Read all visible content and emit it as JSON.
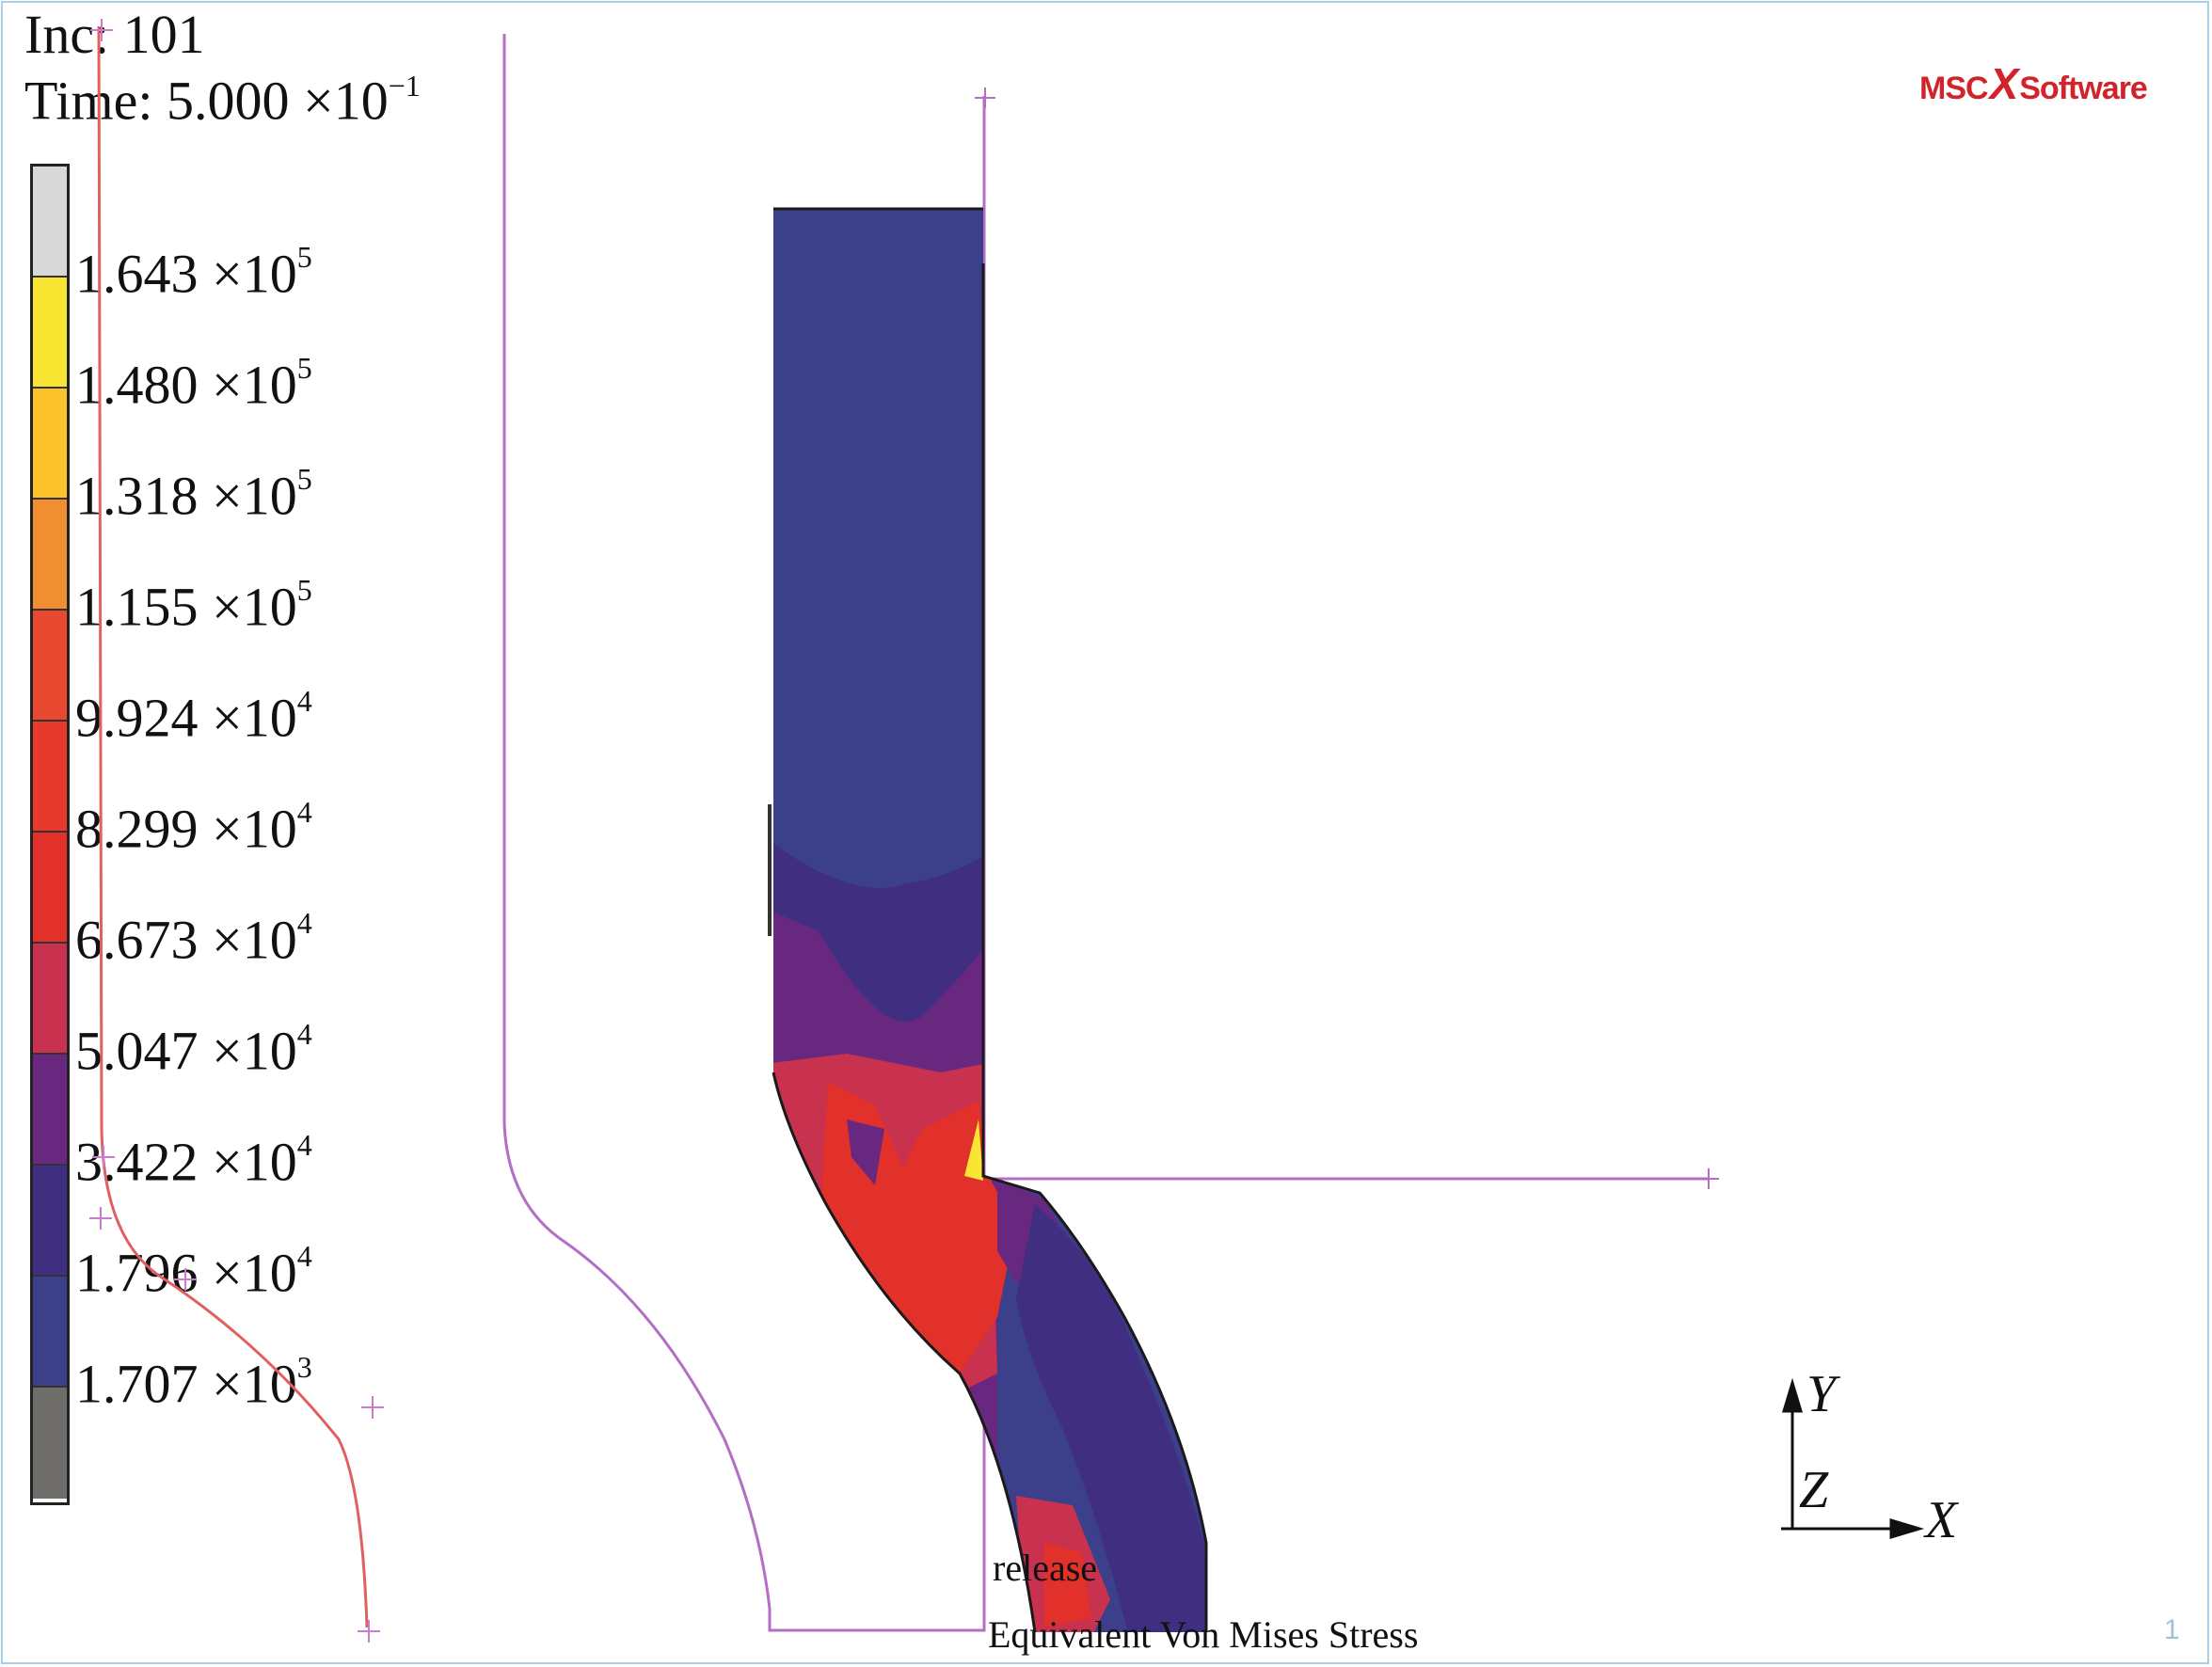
{
  "header": {
    "inc_label": "Inc:",
    "inc_value": "101",
    "time_label": "Time:",
    "time_mantissa": "5.000",
    "time_exp": "−1"
  },
  "legend": {
    "entries": [
      {
        "mantissa": "1.643",
        "exp": "5"
      },
      {
        "mantissa": "1.480",
        "exp": "5"
      },
      {
        "mantissa": "1.318",
        "exp": "5"
      },
      {
        "mantissa": "1.155",
        "exp": "5"
      },
      {
        "mantissa": "9.924",
        "exp": "4"
      },
      {
        "mantissa": "8.299",
        "exp": "4"
      },
      {
        "mantissa": "6.673",
        "exp": "4"
      },
      {
        "mantissa": "5.047",
        "exp": "4"
      },
      {
        "mantissa": "3.422",
        "exp": "4"
      },
      {
        "mantissa": "1.796",
        "exp": "4"
      },
      {
        "mantissa": "1.707",
        "exp": "3"
      }
    ],
    "colors": [
      "#d8d8d8",
      "#f8e632",
      "#fbc22c",
      "#f08f32",
      "#e8482f",
      "#e73a2c",
      "#e2302a",
      "#c8324e",
      "#68287f",
      "#402e80",
      "#3c3f8a",
      "#6e6d69"
    ]
  },
  "logo": {
    "left": "MSC",
    "right": "Software"
  },
  "captions": {
    "load_case": "release",
    "result": "Equivalent  Von  Mises  Stress"
  },
  "axes": {
    "y": "Y",
    "z": "Z",
    "x": "X"
  },
  "page_number": "1",
  "colors": {
    "die_outline": "#b26fc4",
    "punch_curve": "#e06060",
    "bg": "#ffffff"
  }
}
